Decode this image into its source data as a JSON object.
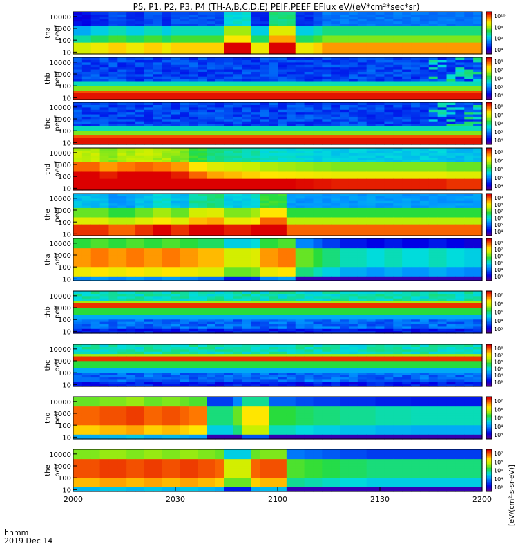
{
  "chart_data": {
    "type": "heatmap",
    "title": "P5, P1, P2, P3, P4 (TH-A,B,C,D,E) PEIF,PEEF EFlux eV/(eV*cm²*sec*sr)",
    "xlabel": "hhmm",
    "date_label": "2019 Dec 14",
    "x_ticks": [
      "2000",
      "2030",
      "2100",
      "2130",
      "2200"
    ],
    "x_range": [
      "2000",
      "2200"
    ],
    "y_scale": "log",
    "y_range": [
      7,
      25000
    ],
    "y_ticks": [
      "10",
      "100",
      "1000",
      "10000"
    ],
    "colorbar_title": "[eV/(cm²-s-sr-eV)]",
    "colormap": "rainbow (blue-cyan-green-yellow-red)",
    "panels": [
      {
        "label_line1": "tha",
        "label_line2": "peef",
        "cbar_ticks": [
          "10¹⁰",
          "10⁸",
          "10⁶",
          "10⁴"
        ],
        "pattern": "tha_peef"
      },
      {
        "label_line1": "thb",
        "label_line2": "peef",
        "cbar_ticks": [
          "10⁸",
          "10⁷",
          "10⁶",
          "10⁵",
          "10⁴"
        ],
        "pattern": "thb_peef"
      },
      {
        "label_line1": "thc",
        "label_line2": "peef",
        "cbar_ticks": [
          "10⁸",
          "10⁷",
          "10⁶",
          "10⁵",
          "10⁴"
        ],
        "pattern": "thc_peef"
      },
      {
        "label_line1": "thd",
        "label_line2": "peef",
        "cbar_ticks": [
          "10⁸",
          "10⁷",
          "10⁶",
          "10⁵",
          "10⁴"
        ],
        "pattern": "thd_peef"
      },
      {
        "label_line1": "the",
        "label_line2": "peef",
        "cbar_ticks": [
          "10⁹",
          "10⁸",
          "10⁷",
          "10⁶",
          "10⁵",
          "10⁴"
        ],
        "pattern": "the_peef"
      },
      {
        "label_line1": "tha",
        "label_line2": "peif",
        "cbar_ticks": [
          "10⁸",
          "10⁷",
          "10⁶",
          "10⁵",
          "10⁴",
          "10³"
        ],
        "pattern": "tha_peif"
      },
      {
        "label_line1": "thb",
        "label_line2": "peif",
        "cbar_ticks": [
          "10⁷",
          "10⁶",
          "10⁵",
          "10⁴",
          "10³"
        ],
        "pattern": "thb_peif"
      },
      {
        "label_line1": "thc",
        "label_line2": "peif",
        "cbar_ticks": [
          "10⁸",
          "10⁷",
          "10⁶",
          "10⁵",
          "10⁴",
          "10³"
        ],
        "pattern": "thc_peif"
      },
      {
        "label_line1": "thd",
        "label_line2": "peif",
        "cbar_ticks": [
          "10⁷",
          "10⁶",
          "10⁵",
          "10⁴",
          "10³"
        ],
        "pattern": "thd_peif"
      },
      {
        "label_line1": "the",
        "label_line2": "peif",
        "cbar_ticks": [
          "10⁷",
          "10⁶",
          "10⁵",
          "10⁴",
          "10³"
        ],
        "pattern": "the_peif"
      }
    ]
  }
}
